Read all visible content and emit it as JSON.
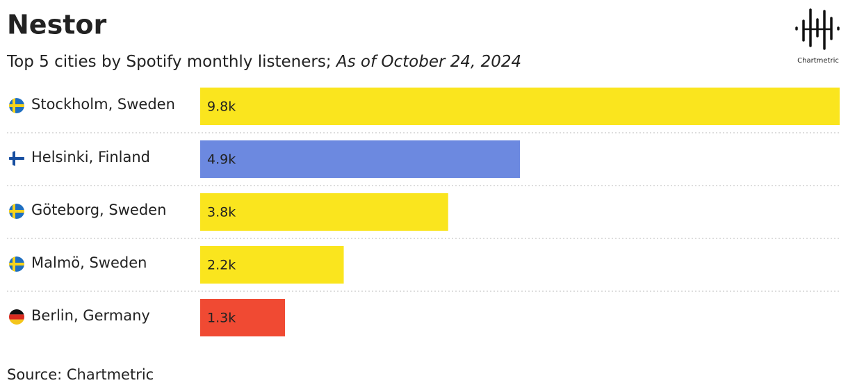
{
  "chart_data": {
    "type": "bar",
    "title": "Nestor",
    "subtitle": "Top 5 cities by Spotify monthly listeners; ",
    "date_note": "As of October 24, 2024",
    "source": "Source: Chartmetric",
    "logo_text": "Chartmetric",
    "categories": [
      "Stockholm, Sweden",
      "Helsinki, Finland",
      "Göteborg, Sweden",
      "Malmö, Sweden",
      "Berlin, Germany"
    ],
    "values": [
      9800,
      4900,
      3800,
      2200,
      1300
    ],
    "value_labels": [
      "9.8k",
      "4.9k",
      "3.8k",
      "2.2k",
      "1.3k"
    ],
    "colors": [
      "#fae51e",
      "#6c89e0",
      "#fae51e",
      "#fae51e",
      "#f04a33"
    ]
  }
}
